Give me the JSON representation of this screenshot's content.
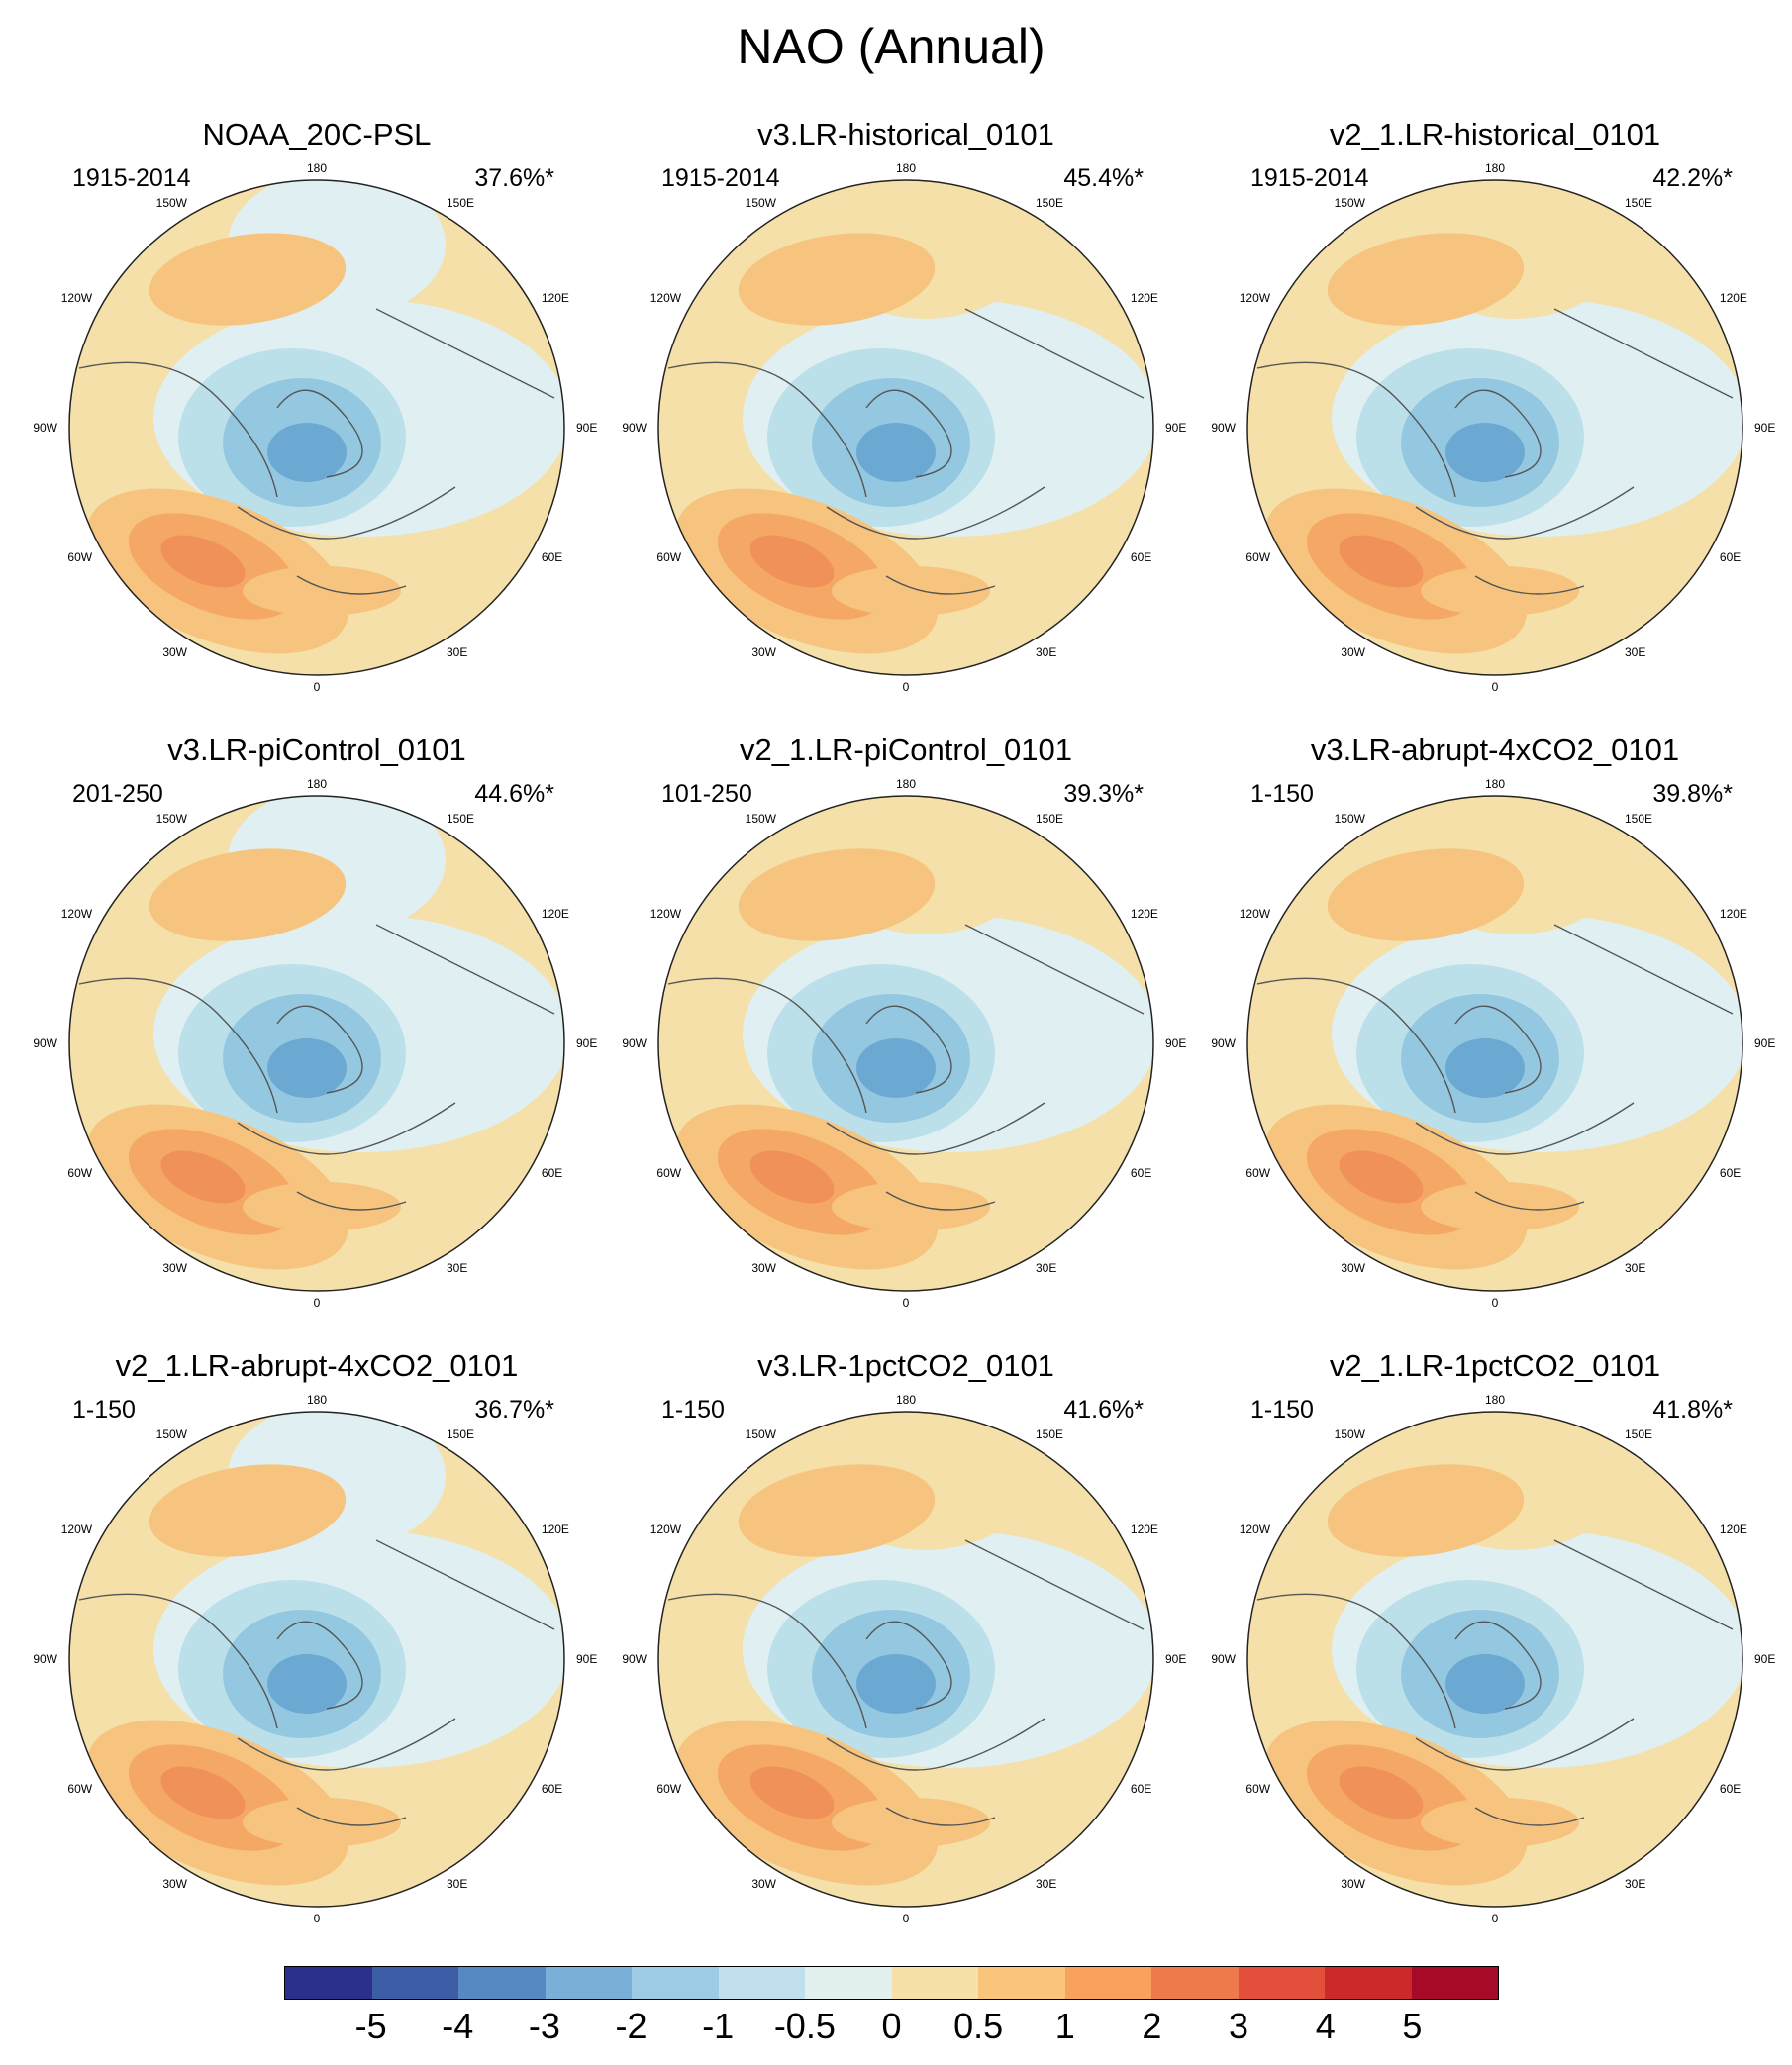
{
  "title": "NAO (Annual)",
  "colors": {
    "strong_pos": "#f0915a",
    "mid_pos": "#f5a866",
    "weak_pos": "#f6c47e",
    "near_zero_pos": "#f4e0a8",
    "near_zero_neg": "#e0f0f2",
    "weak_neg": "#bce0ea",
    "mid_neg": "#94c8e0",
    "strong_neg": "#6ca9d2"
  },
  "lon_labels": [
    "180",
    "150E",
    "120E",
    "90E",
    "60E",
    "30E",
    "0",
    "30W",
    "60W",
    "90W",
    "120W",
    "150W"
  ],
  "panels": [
    {
      "title": "NOAA_20C-PSL",
      "period": "1915-2014",
      "variance": "37.6%*"
    },
    {
      "title": "v3.LR-historical_0101",
      "period": "1915-2014",
      "variance": "45.4%*"
    },
    {
      "title": "v2_1.LR-historical_0101",
      "period": "1915-2014",
      "variance": "42.2%*"
    },
    {
      "title": "v3.LR-piControl_0101",
      "period": "201-250",
      "variance": "44.6%*"
    },
    {
      "title": "v2_1.LR-piControl_0101",
      "period": "101-250",
      "variance": "39.3%*"
    },
    {
      "title": "v3.LR-abrupt-4xCO2_0101",
      "period": "1-150",
      "variance": "39.8%*"
    },
    {
      "title": "v2_1.LR-abrupt-4xCO2_0101",
      "period": "1-150",
      "variance": "36.7%*"
    },
    {
      "title": "v3.LR-1pctCO2_0101",
      "period": "1-150",
      "variance": "41.6%*"
    },
    {
      "title": "v2_1.LR-1pctCO2_0101",
      "period": "1-150",
      "variance": "41.8%*"
    }
  ],
  "colorbar": {
    "swatches": [
      "#2c2f8c",
      "#3d5ea6",
      "#5688c2",
      "#7ab0d8",
      "#9dcbe3",
      "#bfe0ec",
      "#e2f0f0",
      "#f6e2a8",
      "#fac57b",
      "#f8a25e",
      "#ee7a4c",
      "#e2503c",
      "#cc2a2a",
      "#a50a26"
    ],
    "labels": [
      "-5",
      "-4",
      "-3",
      "-2",
      "-1",
      "-0.5",
      "0",
      "0.5",
      "1",
      "2",
      "3",
      "4",
      "5"
    ]
  }
}
